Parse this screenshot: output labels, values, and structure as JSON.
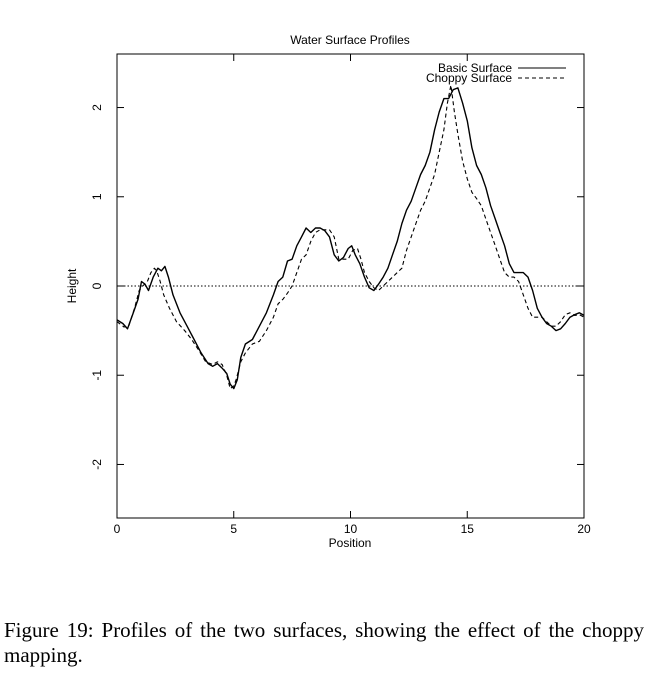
{
  "chart_data": {
    "type": "line",
    "title": "Water Surface Profiles",
    "xlabel": "Position",
    "ylabel": "Height",
    "xlim": [
      0,
      20
    ],
    "ylim": [
      -2.6,
      2.6
    ],
    "xticks": [
      0,
      5,
      10,
      15,
      20
    ],
    "yticks": [
      -2,
      -1,
      0,
      1,
      2
    ],
    "grid": false,
    "zero_line": true,
    "legend_position": "top-right",
    "series": [
      {
        "name": "Basic Surface",
        "style": "solid",
        "points": [
          [
            0,
            -0.38
          ],
          [
            0.25,
            -0.42
          ],
          [
            0.45,
            -0.48
          ],
          [
            0.7,
            -0.3
          ],
          [
            0.9,
            -0.15
          ],
          [
            1.05,
            0.05
          ],
          [
            1.2,
            0.02
          ],
          [
            1.35,
            -0.05
          ],
          [
            1.55,
            0.1
          ],
          [
            1.75,
            0.2
          ],
          [
            1.9,
            0.17
          ],
          [
            2.05,
            0.22
          ],
          [
            2.2,
            0.1
          ],
          [
            2.4,
            -0.1
          ],
          [
            2.7,
            -0.3
          ],
          [
            3.0,
            -0.45
          ],
          [
            3.3,
            -0.6
          ],
          [
            3.6,
            -0.75
          ],
          [
            3.9,
            -0.87
          ],
          [
            4.1,
            -0.9
          ],
          [
            4.3,
            -0.87
          ],
          [
            4.5,
            -0.92
          ],
          [
            4.7,
            -0.98
          ],
          [
            4.85,
            -1.1
          ],
          [
            5.0,
            -1.15
          ],
          [
            5.15,
            -1.05
          ],
          [
            5.3,
            -0.8
          ],
          [
            5.5,
            -0.65
          ],
          [
            5.8,
            -0.6
          ],
          [
            6.1,
            -0.45
          ],
          [
            6.4,
            -0.3
          ],
          [
            6.7,
            -0.1
          ],
          [
            6.9,
            0.05
          ],
          [
            7.1,
            0.1
          ],
          [
            7.3,
            0.28
          ],
          [
            7.5,
            0.3
          ],
          [
            7.7,
            0.45
          ],
          [
            7.9,
            0.55
          ],
          [
            8.1,
            0.65
          ],
          [
            8.3,
            0.6
          ],
          [
            8.5,
            0.65
          ],
          [
            8.7,
            0.65
          ],
          [
            8.9,
            0.62
          ],
          [
            9.1,
            0.55
          ],
          [
            9.3,
            0.35
          ],
          [
            9.5,
            0.28
          ],
          [
            9.7,
            0.32
          ],
          [
            9.9,
            0.42
          ],
          [
            10.05,
            0.45
          ],
          [
            10.2,
            0.35
          ],
          [
            10.4,
            0.25
          ],
          [
            10.6,
            0.1
          ],
          [
            10.8,
            -0.02
          ],
          [
            11.0,
            -0.05
          ],
          [
            11.2,
            0.02
          ],
          [
            11.4,
            0.1
          ],
          [
            11.6,
            0.2
          ],
          [
            11.8,
            0.35
          ],
          [
            12.0,
            0.5
          ],
          [
            12.2,
            0.7
          ],
          [
            12.4,
            0.85
          ],
          [
            12.6,
            0.95
          ],
          [
            12.8,
            1.1
          ],
          [
            13.0,
            1.25
          ],
          [
            13.2,
            1.35
          ],
          [
            13.4,
            1.5
          ],
          [
            13.6,
            1.75
          ],
          [
            13.8,
            1.95
          ],
          [
            14.0,
            2.1
          ],
          [
            14.2,
            2.1
          ],
          [
            14.4,
            2.2
          ],
          [
            14.6,
            2.22
          ],
          [
            14.8,
            2.05
          ],
          [
            15.0,
            1.85
          ],
          [
            15.2,
            1.55
          ],
          [
            15.4,
            1.35
          ],
          [
            15.6,
            1.25
          ],
          [
            15.8,
            1.1
          ],
          [
            16.0,
            0.9
          ],
          [
            16.2,
            0.75
          ],
          [
            16.4,
            0.6
          ],
          [
            16.6,
            0.45
          ],
          [
            16.8,
            0.25
          ],
          [
            17.0,
            0.15
          ],
          [
            17.2,
            0.15
          ],
          [
            17.4,
            0.15
          ],
          [
            17.6,
            0.1
          ],
          [
            17.8,
            -0.05
          ],
          [
            18.0,
            -0.25
          ],
          [
            18.2,
            -0.35
          ],
          [
            18.4,
            -0.42
          ],
          [
            18.6,
            -0.45
          ],
          [
            18.8,
            -0.5
          ],
          [
            19.0,
            -0.48
          ],
          [
            19.2,
            -0.42
          ],
          [
            19.4,
            -0.35
          ],
          [
            19.6,
            -0.32
          ],
          [
            19.8,
            -0.3
          ],
          [
            20.0,
            -0.33
          ]
        ]
      },
      {
        "name": "Choppy Surface",
        "style": "dashed",
        "points": [
          [
            0,
            -0.4
          ],
          [
            0.3,
            -0.46
          ],
          [
            0.5,
            -0.45
          ],
          [
            0.75,
            -0.25
          ],
          [
            0.95,
            -0.05
          ],
          [
            1.1,
            0.0
          ],
          [
            1.3,
            0.05
          ],
          [
            1.45,
            0.15
          ],
          [
            1.6,
            0.2
          ],
          [
            1.7,
            0.17
          ],
          [
            1.85,
            0.05
          ],
          [
            2.0,
            -0.1
          ],
          [
            2.25,
            -0.25
          ],
          [
            2.55,
            -0.4
          ],
          [
            2.9,
            -0.5
          ],
          [
            3.2,
            -0.6
          ],
          [
            3.5,
            -0.72
          ],
          [
            3.8,
            -0.85
          ],
          [
            4.1,
            -0.88
          ],
          [
            4.3,
            -0.85
          ],
          [
            4.5,
            -0.88
          ],
          [
            4.7,
            -1.0
          ],
          [
            4.85,
            -1.15
          ],
          [
            5.0,
            -1.12
          ],
          [
            5.1,
            -1.05
          ],
          [
            5.3,
            -0.85
          ],
          [
            5.5,
            -0.75
          ],
          [
            5.8,
            -0.65
          ],
          [
            6.1,
            -0.62
          ],
          [
            6.4,
            -0.5
          ],
          [
            6.7,
            -0.35
          ],
          [
            6.9,
            -0.2
          ],
          [
            7.1,
            -0.15
          ],
          [
            7.3,
            -0.08
          ],
          [
            7.5,
            0.0
          ],
          [
            7.7,
            0.15
          ],
          [
            7.9,
            0.3
          ],
          [
            8.1,
            0.35
          ],
          [
            8.3,
            0.5
          ],
          [
            8.5,
            0.6
          ],
          [
            8.7,
            0.63
          ],
          [
            8.9,
            0.63
          ],
          [
            9.1,
            0.63
          ],
          [
            9.3,
            0.55
          ],
          [
            9.5,
            0.3
          ],
          [
            9.7,
            0.3
          ],
          [
            9.9,
            0.3
          ],
          [
            10.1,
            0.4
          ],
          [
            10.3,
            0.42
          ],
          [
            10.45,
            0.3
          ],
          [
            10.6,
            0.15
          ],
          [
            10.8,
            0.05
          ],
          [
            11.0,
            -0.02
          ],
          [
            11.2,
            -0.05
          ],
          [
            11.4,
            0.0
          ],
          [
            11.6,
            0.05
          ],
          [
            11.8,
            0.1
          ],
          [
            12.0,
            0.15
          ],
          [
            12.2,
            0.2
          ],
          [
            12.4,
            0.4
          ],
          [
            12.6,
            0.55
          ],
          [
            12.8,
            0.7
          ],
          [
            13.0,
            0.85
          ],
          [
            13.2,
            0.95
          ],
          [
            13.4,
            1.1
          ],
          [
            13.6,
            1.25
          ],
          [
            13.8,
            1.5
          ],
          [
            14.0,
            1.75
          ],
          [
            14.15,
            2.05
          ],
          [
            14.3,
            2.25
          ],
          [
            14.45,
            1.95
          ],
          [
            14.6,
            1.7
          ],
          [
            14.8,
            1.4
          ],
          [
            15.0,
            1.2
          ],
          [
            15.2,
            1.05
          ],
          [
            15.4,
            0.98
          ],
          [
            15.6,
            0.9
          ],
          [
            15.8,
            0.75
          ],
          [
            16.0,
            0.6
          ],
          [
            16.2,
            0.45
          ],
          [
            16.4,
            0.3
          ],
          [
            16.6,
            0.15
          ],
          [
            16.8,
            0.1
          ],
          [
            17.0,
            0.1
          ],
          [
            17.2,
            0.05
          ],
          [
            17.4,
            -0.1
          ],
          [
            17.6,
            -0.25
          ],
          [
            17.8,
            -0.35
          ],
          [
            18.0,
            -0.35
          ],
          [
            18.2,
            -0.35
          ],
          [
            18.4,
            -0.4
          ],
          [
            18.6,
            -0.45
          ],
          [
            18.8,
            -0.45
          ],
          [
            19.0,
            -0.4
          ],
          [
            19.2,
            -0.32
          ],
          [
            19.4,
            -0.3
          ],
          [
            19.6,
            -0.33
          ],
          [
            19.8,
            -0.32
          ],
          [
            20.0,
            -0.35
          ]
        ]
      }
    ]
  },
  "caption": "Figure 19: Profiles of the two surfaces, showing the effect of the choppy mapping."
}
